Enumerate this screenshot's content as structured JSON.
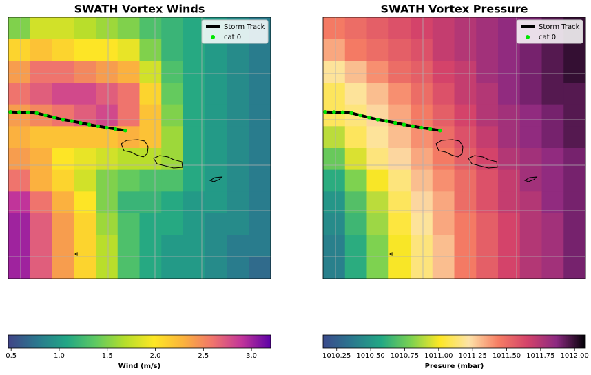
{
  "chart_data": [
    {
      "type": "heatmap",
      "title": "SWATH Vortex Winds",
      "values": [
        [
          1.5,
          1.8,
          1.8,
          1.7,
          1.6,
          1.5,
          1.3,
          1.2,
          1.1,
          1.0,
          0.9,
          0.8
        ],
        [
          2.1,
          2.2,
          2.1,
          2.0,
          2.0,
          1.9,
          1.5,
          1.2,
          1.1,
          1.0,
          0.9,
          0.8
        ],
        [
          2.4,
          2.6,
          2.6,
          2.5,
          2.4,
          2.3,
          1.8,
          1.3,
          1.1,
          1.0,
          0.9,
          0.8
        ],
        [
          2.6,
          2.7,
          2.8,
          2.8,
          2.7,
          2.6,
          2.1,
          1.4,
          1.1,
          1.0,
          0.9,
          0.8
        ],
        [
          2.4,
          2.5,
          2.6,
          2.7,
          2.8,
          2.6,
          2.2,
          1.5,
          1.1,
          1.0,
          0.9,
          0.8
        ],
        [
          2.3,
          2.2,
          2.2,
          2.2,
          2.2,
          2.3,
          2.2,
          1.6,
          1.1,
          1.0,
          0.9,
          0.8
        ],
        [
          2.4,
          2.3,
          2.0,
          1.9,
          1.8,
          1.7,
          1.7,
          1.6,
          1.1,
          1.0,
          0.9,
          0.8
        ],
        [
          2.6,
          2.3,
          2.1,
          1.8,
          1.5,
          1.4,
          1.3,
          1.3,
          1.1,
          1.0,
          0.9,
          0.8
        ],
        [
          2.9,
          2.6,
          2.3,
          2.0,
          1.5,
          1.2,
          1.2,
          1.1,
          1.0,
          1.0,
          0.9,
          0.8
        ],
        [
          3.0,
          2.7,
          2.4,
          2.1,
          1.6,
          1.3,
          1.1,
          1.1,
          1.0,
          0.9,
          0.9,
          0.8
        ],
        [
          3.0,
          2.7,
          2.4,
          2.1,
          1.7,
          1.3,
          1.1,
          1.0,
          1.0,
          0.9,
          0.8,
          0.8
        ],
        [
          3.0,
          2.7,
          2.4,
          2.1,
          1.7,
          1.3,
          1.1,
          1.0,
          1.0,
          0.9,
          0.8,
          0.7
        ]
      ],
      "colormap": [
        "#414487",
        "#2a788e",
        "#21a685",
        "#5ec962",
        "#b5de2b",
        "#fde725",
        "#fbb33d",
        "#f0756c",
        "#c2359a",
        "#5c01a6"
      ],
      "clim": [
        0.47,
        3.2
      ],
      "colorbar_label": "Wind (m/s)",
      "colorbar_ticks": [
        0.5,
        {
          "value": 1,
          "label": "1.0"
        },
        1.5,
        {
          "value": 2,
          "label": "2.0"
        },
        2.5,
        {
          "value": 3,
          "label": "3.0"
        }
      ],
      "xlim": [
        0,
        12
      ],
      "ylim": [
        12,
        0
      ],
      "legend": "upper right",
      "series": [
        {
          "name": "Storm Track",
          "color": "#000000",
          "x": [
            0.1,
            0.5,
            0.9,
            1.3,
            1.7,
            2.1,
            2.5,
            2.9,
            3.3,
            3.7,
            4.1,
            4.5,
            4.9,
            5.35
          ],
          "y": [
            4.35,
            4.36,
            4.37,
            4.4,
            4.5,
            4.6,
            4.7,
            4.77,
            4.85,
            4.93,
            5.0,
            5.07,
            5.13,
            5.2
          ],
          "marker": {
            "name": "cat 0",
            "color": "#00e600"
          }
        }
      ]
    },
    {
      "type": "heatmap",
      "title": "SWATH Vortex Pressure",
      "values": [
        [
          1011.45,
          1011.5,
          1011.55,
          1011.6,
          1011.65,
          1011.7,
          1011.75,
          1011.8,
          1011.85,
          1011.9,
          1011.95,
          1012.0
        ],
        [
          1011.35,
          1011.45,
          1011.5,
          1011.55,
          1011.6,
          1011.7,
          1011.75,
          1011.8,
          1011.85,
          1011.9,
          1011.95,
          1012.0
        ],
        [
          1011.2,
          1011.3,
          1011.4,
          1011.5,
          1011.55,
          1011.65,
          1011.7,
          1011.8,
          1011.85,
          1011.9,
          1011.95,
          1012.0
        ],
        [
          1011.1,
          1011.2,
          1011.3,
          1011.4,
          1011.5,
          1011.6,
          1011.7,
          1011.75,
          1011.85,
          1011.9,
          1011.95,
          1011.95
        ],
        [
          1011.1,
          1011.15,
          1011.25,
          1011.35,
          1011.45,
          1011.55,
          1011.65,
          1011.75,
          1011.8,
          1011.85,
          1011.9,
          1011.95
        ],
        [
          1010.9,
          1011.1,
          1011.2,
          1011.3,
          1011.4,
          1011.5,
          1011.6,
          1011.7,
          1011.8,
          1011.85,
          1011.9,
          1011.95
        ],
        [
          1010.75,
          1010.95,
          1011.15,
          1011.25,
          1011.35,
          1011.45,
          1011.55,
          1011.65,
          1011.75,
          1011.8,
          1011.85,
          1011.9
        ],
        [
          1010.6,
          1010.8,
          1011.0,
          1011.15,
          1011.3,
          1011.4,
          1011.5,
          1011.6,
          1011.7,
          1011.8,
          1011.85,
          1011.9
        ],
        [
          1010.5,
          1010.7,
          1010.9,
          1011.1,
          1011.25,
          1011.35,
          1011.5,
          1011.6,
          1011.7,
          1011.75,
          1011.85,
          1011.9
        ],
        [
          1010.45,
          1010.65,
          1010.85,
          1011.05,
          1011.2,
          1011.35,
          1011.45,
          1011.55,
          1011.65,
          1011.75,
          1011.8,
          1011.9
        ],
        [
          1010.4,
          1010.6,
          1010.8,
          1011.0,
          1011.15,
          1011.3,
          1011.45,
          1011.55,
          1011.65,
          1011.75,
          1011.8,
          1011.9
        ],
        [
          1010.4,
          1010.6,
          1010.8,
          1011.0,
          1011.15,
          1011.3,
          1011.45,
          1011.55,
          1011.65,
          1011.75,
          1011.8,
          1011.9
        ]
      ],
      "colormap": [
        "#3b4a8c",
        "#2a788e",
        "#22a884",
        "#7ad151",
        "#fde725",
        "#fde3a8",
        "#f67e64",
        "#d4436a",
        "#8c2981",
        "#000004"
      ],
      "clim": [
        1010.15,
        1012.08
      ],
      "colorbar_label": "Presure (mbar)",
      "colorbar_ticks": [
        1010.25,
        {
          "value": 1010.5,
          "label": "1010.50"
        },
        1010.75,
        {
          "value": 1011,
          "label": "1011.00"
        },
        1011.25,
        {
          "value": 1011.5,
          "label": "1011.50"
        },
        1011.75,
        {
          "value": 1012,
          "label": "1012.00"
        }
      ],
      "xlim": [
        0,
        12
      ],
      "ylim": [
        12,
        0
      ],
      "legend": "upper right",
      "series": [
        {
          "name": "Storm Track",
          "color": "#000000",
          "x": [
            0.1,
            0.5,
            0.9,
            1.3,
            1.7,
            2.1,
            2.5,
            2.9,
            3.3,
            3.7,
            4.1,
            4.5,
            4.9,
            5.35
          ],
          "y": [
            4.35,
            4.36,
            4.37,
            4.4,
            4.5,
            4.6,
            4.7,
            4.77,
            4.85,
            4.93,
            5.0,
            5.07,
            5.13,
            5.2
          ],
          "marker": {
            "name": "cat 0",
            "color": "#00e600"
          }
        }
      ]
    }
  ]
}
